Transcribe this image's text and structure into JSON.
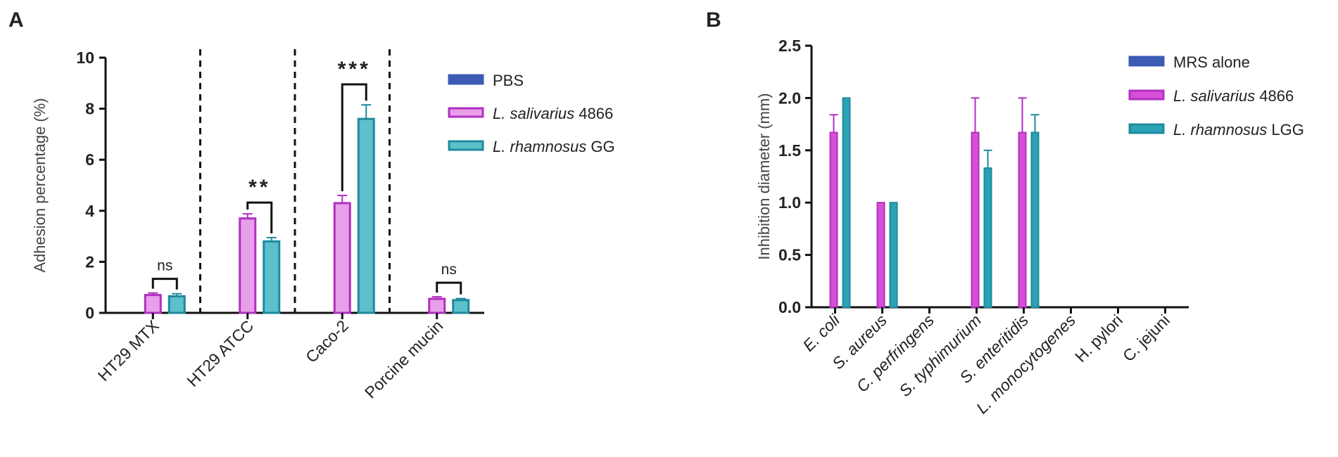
{
  "chart_data": [
    {
      "panel": "A",
      "type": "bar",
      "ylabel": "Adhesion percentage (%)",
      "ylim": [
        0,
        10
      ],
      "yticks": [
        "0",
        "2",
        "4",
        "6",
        "8",
        "10"
      ],
      "categories": [
        "HT29 MTX",
        "HT29 ATCC",
        "Caco-2",
        "Porcine mucin"
      ],
      "series": [
        {
          "name": "PBS",
          "name_italic": "",
          "name_rest": "PBS",
          "color": "#3b5bb5",
          "values": [
            0,
            0,
            0,
            0
          ],
          "errors": [
            0,
            0,
            0,
            0
          ]
        },
        {
          "name": "L. salivarius 4866",
          "name_italic": "L. salivarius",
          "name_rest": " 4866",
          "color": "#b12fc0",
          "fill": "#e89ee8",
          "values": [
            0.7,
            3.7,
            4.3,
            0.55
          ],
          "errors": [
            0.08,
            0.18,
            0.3,
            0.08
          ]
        },
        {
          "name": "L. rhamnosus GG",
          "name_italic": "L. rhamnosus",
          "name_rest": " GG",
          "color": "#1f8a9e",
          "fill": "#5dc0cc",
          "values": [
            0.65,
            2.8,
            7.6,
            0.5
          ],
          "errors": [
            0.1,
            0.15,
            0.55,
            0.06
          ]
        }
      ],
      "significance": [
        "ns",
        "**",
        "***",
        "ns"
      ],
      "separators": "dashed vertical lines between groups"
    },
    {
      "panel": "B",
      "type": "bar",
      "ylabel": "Inhibition diameter (mm)",
      "ylim": [
        0,
        2.5
      ],
      "yticks": [
        "0.0",
        "0.5",
        "1.0",
        "1.5",
        "2.0",
        "2.5"
      ],
      "categories": [
        {
          "italic": "E. coli",
          "rest": ""
        },
        {
          "italic": "S. aureus",
          "rest": ""
        },
        {
          "italic": "C. perfringens",
          "rest": ""
        },
        {
          "italic": "S. typhimurium",
          "rest": ""
        },
        {
          "italic": "S. enteritidis",
          "rest": ""
        },
        {
          "italic": "L. monocytogenes",
          "rest": ""
        },
        {
          "italic": "",
          "rest": "H. pylori"
        },
        {
          "italic": "",
          "rest": "C. jejuni"
        }
      ],
      "series": [
        {
          "name": "MRS alone",
          "name_italic": "",
          "name_rest": "MRS alone",
          "color": "#3b5bb5",
          "values": [
            0,
            0,
            0,
            0,
            0,
            0,
            0,
            0
          ],
          "errors": [
            0,
            0,
            0,
            0,
            0,
            0,
            0,
            0
          ]
        },
        {
          "name": "L. salivarius 4866",
          "name_italic": "L. salivarius",
          "name_rest": " 4866",
          "color": "#b12fc0",
          "fill": "#d64fd6",
          "values": [
            1.67,
            1.0,
            0,
            1.67,
            1.67,
            0,
            0,
            0
          ],
          "errors": [
            0.17,
            0,
            0,
            0.33,
            0.33,
            0,
            0,
            0
          ]
        },
        {
          "name": "L. rhamnosus LGG",
          "name_italic": "L. rhamnosus",
          "name_rest": " LGG",
          "color": "#1f8a9e",
          "fill": "#2aa3b5",
          "values": [
            2.0,
            1.0,
            0,
            1.33,
            1.67,
            0,
            0,
            0
          ],
          "errors": [
            0,
            0,
            0,
            0.17,
            0.17,
            0,
            0,
            0
          ]
        }
      ]
    }
  ]
}
